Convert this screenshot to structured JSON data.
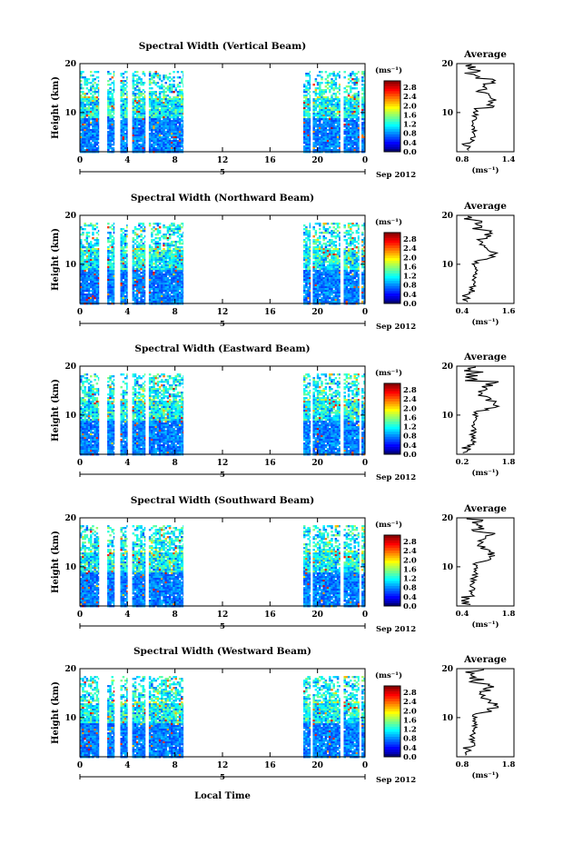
{
  "figure": {
    "xlabel": "Local Time",
    "date_label": "Sep 2012",
    "day_label": "5",
    "units_label": "(ms⁻¹)",
    "avg_title": "Average",
    "ylabel": "Height (km)"
  },
  "chart_data": [
    {
      "type": "heatmap",
      "title": "Spectral Width (Vertical Beam)",
      "ylabel": "Height (km)",
      "xlabel": "Local Time",
      "xticks": [
        "0",
        "4",
        "8",
        "12",
        "16",
        "20",
        "0"
      ],
      "xlim": [
        0,
        24
      ],
      "yticks": [
        "20",
        "10"
      ],
      "ylim": [
        2,
        20
      ],
      "colorbar": {
        "ticks": [
          "2.8",
          "2.4",
          "2.0",
          "1.6",
          "1.2",
          "0.8",
          "0.4",
          "0.0"
        ],
        "range": [
          0,
          2.8
        ]
      },
      "data_intervals_hours": [
        [
          0,
          1.6
        ],
        [
          2.3,
          2.9
        ],
        [
          3.4,
          4.0
        ],
        [
          4.4,
          5.5
        ],
        [
          5.8,
          8.7
        ],
        [
          18.8,
          19.4
        ],
        [
          19.6,
          21.9
        ],
        [
          22.2,
          23.5
        ],
        [
          23.7,
          24.0
        ]
      ],
      "average_profile": {
        "title": "Average",
        "xlabel": "(ms⁻¹)",
        "xticks": [
          "0.8",
          "1.4"
        ],
        "xlim": [
          0.8,
          1.4
        ],
        "yticks": [
          "20",
          "10"
        ]
      }
    },
    {
      "type": "heatmap",
      "title": "Spectral Width (Northward Beam)",
      "ylabel": "Height (km)",
      "xlabel": "Local Time",
      "xticks": [
        "0",
        "4",
        "8",
        "12",
        "16",
        "20",
        "0"
      ],
      "xlim": [
        0,
        24
      ],
      "yticks": [
        "20",
        "10"
      ],
      "ylim": [
        2,
        20
      ],
      "colorbar": {
        "ticks": [
          "2.8",
          "2.4",
          "2.0",
          "1.6",
          "1.2",
          "0.8",
          "0.4",
          "0.0"
        ],
        "range": [
          0,
          2.8
        ]
      },
      "data_intervals_hours": [
        [
          0,
          1.6
        ],
        [
          2.3,
          2.9
        ],
        [
          3.4,
          4.0
        ],
        [
          4.4,
          5.5
        ],
        [
          5.8,
          8.7
        ],
        [
          18.8,
          19.4
        ],
        [
          19.6,
          21.9
        ],
        [
          22.2,
          23.5
        ],
        [
          23.7,
          24.0
        ]
      ],
      "average_profile": {
        "title": "Average",
        "xlabel": "(ms⁻¹)",
        "xticks": [
          "0.4",
          "1.6"
        ],
        "xlim": [
          0.4,
          1.6
        ],
        "yticks": [
          "20",
          "10"
        ]
      }
    },
    {
      "type": "heatmap",
      "title": "Spectral Width (Eastward Beam)",
      "ylabel": "Height (km)",
      "xlabel": "Local Time",
      "xticks": [
        "0",
        "4",
        "8",
        "12",
        "16",
        "20",
        "0"
      ],
      "xlim": [
        0,
        24
      ],
      "yticks": [
        "20",
        "10"
      ],
      "ylim": [
        2,
        20
      ],
      "colorbar": {
        "ticks": [
          "2.8",
          "2.4",
          "2.0",
          "1.6",
          "1.2",
          "0.8",
          "0.4",
          "0.0"
        ],
        "range": [
          0,
          2.8
        ]
      },
      "data_intervals_hours": [
        [
          0,
          1.6
        ],
        [
          2.3,
          2.9
        ],
        [
          3.4,
          4.0
        ],
        [
          4.4,
          5.5
        ],
        [
          5.8,
          8.7
        ],
        [
          18.8,
          19.4
        ],
        [
          19.6,
          21.9
        ],
        [
          22.2,
          23.5
        ],
        [
          23.7,
          24.0
        ]
      ],
      "average_profile": {
        "title": "Average",
        "xlabel": "(ms⁻¹)",
        "xticks": [
          "0.2",
          "1.8"
        ],
        "xlim": [
          0.2,
          1.8
        ],
        "yticks": [
          "20",
          "10"
        ]
      }
    },
    {
      "type": "heatmap",
      "title": "Spectral Width (Southward Beam)",
      "ylabel": "Height (km)",
      "xlabel": "Local Time",
      "xticks": [
        "0",
        "4",
        "8",
        "12",
        "16",
        "20",
        "0"
      ],
      "xlim": [
        0,
        24
      ],
      "yticks": [
        "20",
        "10"
      ],
      "ylim": [
        2,
        20
      ],
      "colorbar": {
        "ticks": [
          "2.8",
          "2.4",
          "2.0",
          "1.6",
          "1.2",
          "0.8",
          "0.4",
          "0.0"
        ],
        "range": [
          0,
          2.8
        ]
      },
      "data_intervals_hours": [
        [
          0,
          1.6
        ],
        [
          2.3,
          2.9
        ],
        [
          3.4,
          4.0
        ],
        [
          4.4,
          5.5
        ],
        [
          5.8,
          8.7
        ],
        [
          18.8,
          19.4
        ],
        [
          19.6,
          21.9
        ],
        [
          22.2,
          23.5
        ],
        [
          23.7,
          24.0
        ]
      ],
      "average_profile": {
        "title": "Average",
        "xlabel": "(ms⁻¹)",
        "xticks": [
          "0.4",
          "1.8"
        ],
        "xlim": [
          0.4,
          1.8
        ],
        "yticks": [
          "20",
          "10"
        ]
      }
    },
    {
      "type": "heatmap",
      "title": "Spectral Width (Westward Beam)",
      "ylabel": "Height (km)",
      "xlabel": "Local Time",
      "xticks": [
        "0",
        "4",
        "8",
        "12",
        "16",
        "20",
        "0"
      ],
      "xlim": [
        0,
        24
      ],
      "yticks": [
        "20",
        "10"
      ],
      "ylim": [
        2,
        20
      ],
      "colorbar": {
        "ticks": [
          "2.8",
          "2.4",
          "2.0",
          "1.6",
          "1.2",
          "0.8",
          "0.4",
          "0.0"
        ],
        "range": [
          0,
          2.8
        ]
      },
      "data_intervals_hours": [
        [
          0,
          1.6
        ],
        [
          2.3,
          2.9
        ],
        [
          3.4,
          4.0
        ],
        [
          4.4,
          5.5
        ],
        [
          5.8,
          8.7
        ],
        [
          18.8,
          19.4
        ],
        [
          19.6,
          21.9
        ],
        [
          22.2,
          23.5
        ],
        [
          23.7,
          24.0
        ]
      ],
      "average_profile": {
        "title": "Average",
        "xlabel": "(ms⁻¹)",
        "xticks": [
          "0.8",
          "1.8"
        ],
        "xlim": [
          0.8,
          1.8
        ],
        "yticks": [
          "20",
          "10"
        ]
      }
    }
  ]
}
